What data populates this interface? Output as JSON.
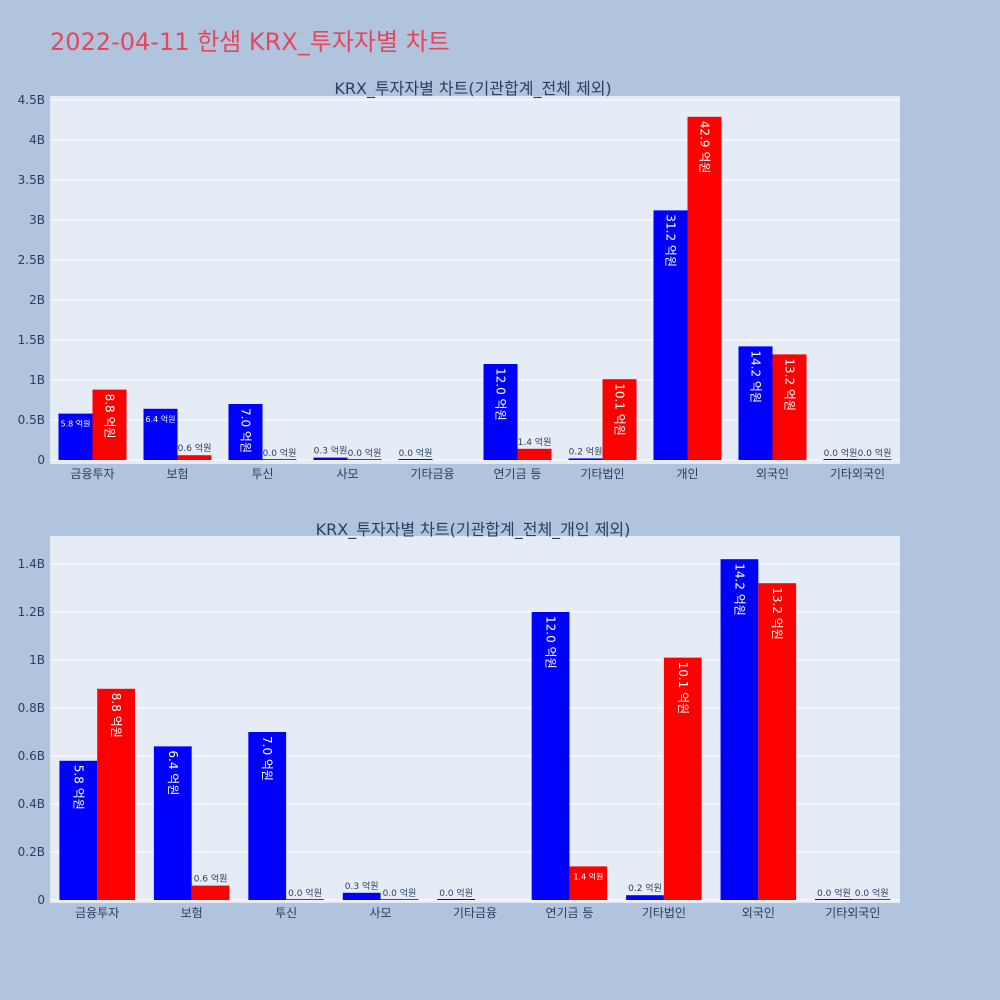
{
  "page_title": "2022-04-11 한샘 KRX_투자자별 차트",
  "colors": {
    "buy": "#0000ff",
    "sell": "#ff0000",
    "title": "#e8475b",
    "plot_bg": "#e5ecf6",
    "page_bg": "#b0c4de"
  },
  "chart_data": [
    {
      "type": "bar",
      "title": "KRX_투자자별 차트(기관합계_전체 제외)",
      "categories": [
        "금융투자",
        "보험",
        "투신",
        "사모",
        "기타금융",
        "연기금 등",
        "기타법인",
        "개인",
        "외국인",
        "기타외국인"
      ],
      "series": [
        {
          "values": [
            0.58,
            0.64,
            0.7,
            0.03,
            0.0,
            1.2,
            0.02,
            3.12,
            1.42,
            0.0
          ],
          "labels": [
            "5.8 억원",
            "6.4 억원",
            "7.0 억원",
            "0.3 억원",
            "0.0 억원",
            "12.0 억원",
            "0.2 억원",
            "31.2 억원",
            "14.2 억원",
            "0.0 억원"
          ]
        },
        {
          "values": [
            0.88,
            0.06,
            0.0,
            0.0,
            null,
            0.14,
            1.01,
            4.29,
            1.32,
            0.0
          ],
          "labels": [
            "8.8 억원",
            "0.6 억원",
            "0.0 억원",
            "0.0 억원",
            "",
            "1.4 억원",
            "10.1 억원",
            "42.9 억원",
            "13.2 억원",
            "0.0 억원"
          ]
        }
      ],
      "y_unit": "B",
      "ylim": [
        0,
        4.5
      ],
      "yticks": [
        0,
        0.5,
        1,
        1.5,
        2,
        2.5,
        3,
        3.5,
        4,
        4.5
      ],
      "ytick_labels": [
        "0",
        "0.5B",
        "1B",
        "1.5B",
        "2B",
        "2.5B",
        "3B",
        "3.5B",
        "4B",
        "4.5B"
      ],
      "grid": true
    },
    {
      "type": "bar",
      "title": "KRX_투자자별 차트(기관합계_전체_개인 제외)",
      "categories": [
        "금융투자",
        "보험",
        "투신",
        "사모",
        "기타금융",
        "연기금 등",
        "기타법인",
        "외국인",
        "기타외국인"
      ],
      "series": [
        {
          "values": [
            0.58,
            0.64,
            0.7,
            0.03,
            0.0,
            1.2,
            0.02,
            1.42,
            0.0
          ],
          "labels": [
            "5.8 억원",
            "6.4 억원",
            "7.0 억원",
            "0.3 억원",
            "0.0 억원",
            "12.0 억원",
            "0.2 억원",
            "14.2 억원",
            "0.0 억원"
          ]
        },
        {
          "values": [
            0.88,
            0.06,
            0.0,
            0.0,
            null,
            0.14,
            1.01,
            1.32,
            0.0
          ],
          "labels": [
            "8.8 억원",
            "0.6 억원",
            "0.0 억원",
            "0.0 억원",
            "",
            "1.4 억원",
            "10.1 억원",
            "13.2 억원",
            "0.0 억원"
          ]
        }
      ],
      "y_unit": "B",
      "ylim": [
        0,
        1.5
      ],
      "yticks": [
        0,
        0.2,
        0.4,
        0.6,
        0.8,
        1.0,
        1.2,
        1.4
      ],
      "ytick_labels": [
        "0",
        "0.2B",
        "0.4B",
        "0.6B",
        "0.8B",
        "1B",
        "1.2B",
        "1.4B"
      ],
      "grid": true
    }
  ]
}
